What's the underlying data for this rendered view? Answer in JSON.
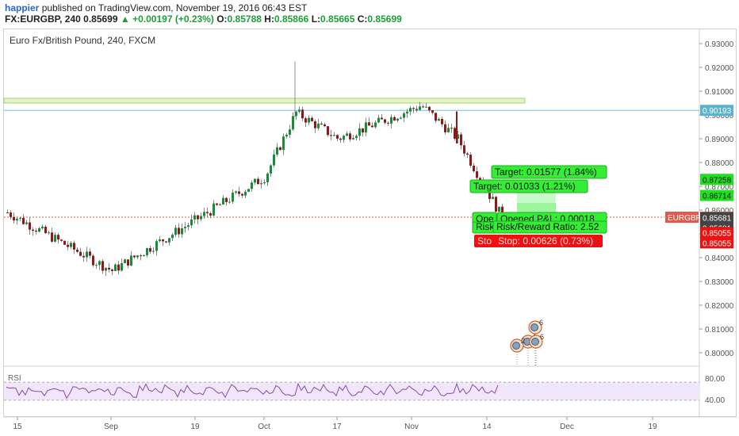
{
  "header": {
    "user": "happier",
    "published": "published on TradingView.com, November 19, 2016 06:43 EST",
    "symbol": "FX:EURGBP, 240",
    "last": "0.85699",
    "change": "▲ +0.00197 (+0.23%)",
    "ohlc": [
      {
        "k": "O:",
        "v": "0.85788"
      },
      {
        "k": "H:",
        "v": "0.85866"
      },
      {
        "k": "L:",
        "v": "0.85665"
      },
      {
        "k": "C:",
        "v": "0.85699"
      }
    ]
  },
  "chart_data": {
    "type": "candlestick",
    "title": "Euro Fx/British Pound, 240, FXCM",
    "ylim": [
      0.795,
      0.935
    ],
    "y_ticks": [
      "0.80000",
      "0.81000",
      "0.82000",
      "0.83000",
      "0.84000",
      "0.85000",
      "0.86000",
      "0.87000",
      "0.88000",
      "0.89000",
      "0.90000",
      "0.91000",
      "0.92000",
      "0.93000"
    ],
    "x_ticks": [
      "15",
      "Sep",
      "19",
      "Oct",
      "17",
      "Nov",
      "14",
      "Dec",
      "19"
    ],
    "price_path": [
      [
        "15",
        0.859
      ],
      [
        "Sep",
        0.8345
      ],
      [
        "19",
        0.856
      ],
      [
        "Oct",
        0.874
      ],
      [
        "Oct",
        0.901
      ],
      [
        "17",
        0.89
      ],
      [
        "Nov",
        0.904
      ],
      [
        "Nov",
        0.89
      ],
      [
        "14",
        0.8568
      ]
    ],
    "resistance_zone": [
      0.905,
      0.907
    ],
    "horizontal_line": {
      "value": 0.90193,
      "label": "0.90193"
    },
    "current_price": {
      "value": 0.85699,
      "label": "EURGBP",
      "price": "0.85699"
    },
    "price_labels": [
      {
        "value": 0.87258,
        "label": "0.87258",
        "color": "#1fe01f"
      },
      {
        "value": 0.86714,
        "label": "0.86714",
        "color": "#1fe01f"
      },
      {
        "value": 0.85681,
        "label": "0.85681",
        "color": "#444444"
      },
      {
        "value": 0.85681,
        "label": "0.85681",
        "color": "#444444"
      },
      {
        "value": 0.85055,
        "label": "0.85055",
        "color": "#ee1111"
      },
      {
        "value": 0.85055,
        "label": "0.85055",
        "color": "#ee1111"
      }
    ],
    "position": {
      "target1": "Target: 0.01577 (1.84%)",
      "target2": "Target: 0.01033 (1.21%)",
      "opened_pl": "Opened P&L: 0.00018",
      "risk_reward": "Risk/Reward Ratio: 2.52",
      "stop": "Stop: 0.00626 (0.73%)",
      "short_opened": "Ope",
      "short_risk": "Risk",
      "short_stop": "Sto"
    },
    "events": [
      "6",
      "4",
      "6",
      "2"
    ],
    "rsi": {
      "label": "RSI",
      "levels": [
        "80.00",
        "40.00"
      ],
      "ylim": [
        0,
        100
      ],
      "band": [
        30,
        70
      ],
      "values": [
        56,
        60,
        45,
        62,
        50,
        66,
        42,
        70,
        38,
        55,
        44,
        60,
        36,
        52,
        47,
        64,
        33,
        58,
        49,
        41,
        57,
        63,
        39,
        50,
        46,
        68,
        35,
        54,
        48,
        59,
        44,
        37,
        61,
        52,
        45,
        69,
        40,
        56,
        50,
        62,
        34,
        47,
        58,
        43,
        60,
        51,
        38,
        64,
        45,
        53
      ]
    }
  }
}
